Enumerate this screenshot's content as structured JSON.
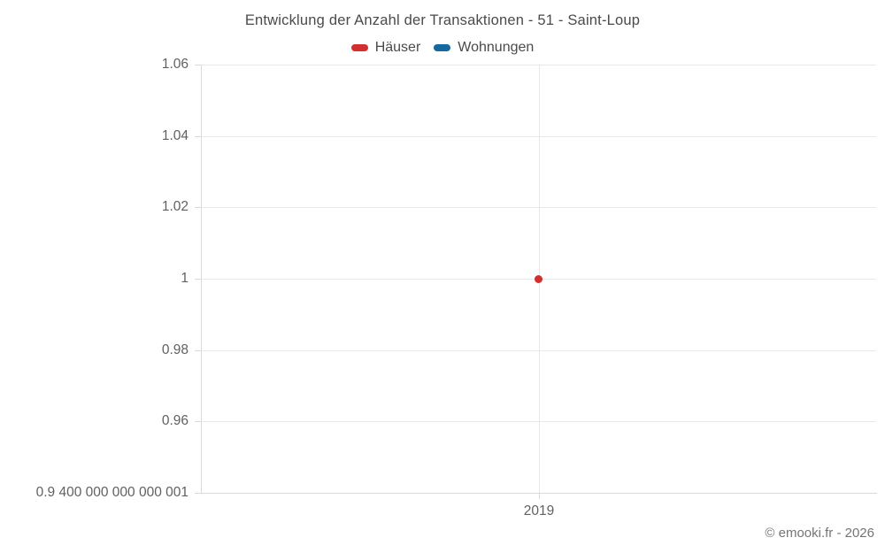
{
  "title": "Entwicklung der Anzahl der Transaktionen - 51 - Saint-Loup",
  "legend": [
    {
      "label": "Häuser",
      "color": "#d32f2f"
    },
    {
      "label": "Wohnungen",
      "color": "#1669a0"
    }
  ],
  "footer": "© emooki.fr - 2026",
  "chart_data": {
    "type": "scatter",
    "title": "Entwicklung der Anzahl der Transaktionen - 51 - Saint-Loup",
    "categories": [
      "2019"
    ],
    "series": [
      {
        "name": "Häuser",
        "color": "#d32f2f",
        "values": [
          1
        ]
      },
      {
        "name": "Wohnungen",
        "color": "#1669a0",
        "values": [
          null
        ]
      }
    ],
    "ylim": [
      0.9400000000000001,
      1.06
    ],
    "yticks": [
      {
        "label": "1.06",
        "value": 1.06
      },
      {
        "label": "1.04",
        "value": 1.04
      },
      {
        "label": "1.02",
        "value": 1.02
      },
      {
        "label": "1",
        "value": 1
      },
      {
        "label": "0.98",
        "value": 0.98
      },
      {
        "label": "0.96",
        "value": 0.96
      },
      {
        "label": "0.9 400 000 000 000 001",
        "value": 0.9400000000000001
      }
    ],
    "xticks": [
      {
        "label": "2019"
      }
    ],
    "grid": true,
    "legend_position": "top",
    "xlabel": "",
    "ylabel": ""
  }
}
